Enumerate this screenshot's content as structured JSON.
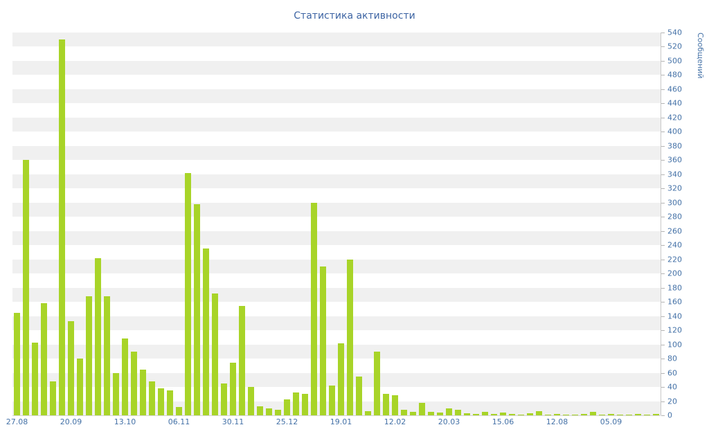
{
  "chart_data": {
    "type": "bar",
    "title": "Статистика активности",
    "ylabel": "Сообщений",
    "xlabel": "",
    "ylim": [
      0,
      540
    ],
    "ytick_interval": 20,
    "x_tick_labels": [
      "27.08",
      "20.09",
      "13.10",
      "06.11",
      "30.11",
      "25.12",
      "19.01",
      "12.02",
      "20.03",
      "15.06",
      "12.08",
      "05.09"
    ],
    "x_tick_every": 6,
    "values": [
      145,
      360,
      103,
      158,
      48,
      530,
      133,
      80,
      168,
      222,
      168,
      60,
      108,
      90,
      64,
      48,
      38,
      35,
      12,
      342,
      298,
      235,
      172,
      45,
      74,
      154,
      40,
      13,
      10,
      8,
      22,
      32,
      30,
      300,
      210,
      42,
      102,
      220,
      55,
      6,
      90,
      30,
      28,
      8,
      5,
      18,
      5,
      4,
      10,
      8,
      3,
      2,
      5,
      2,
      4,
      2,
      1,
      3,
      6,
      1,
      2,
      1,
      1,
      2,
      5,
      1,
      2,
      1,
      1,
      2,
      1,
      2
    ],
    "bar_color": "#a8d428",
    "band_color_odd": "#f0f0f0",
    "band_color_even": "#ffffff",
    "axis_label_color": "#4572a7",
    "grid": "horizontal-bands",
    "legend": "none"
  }
}
